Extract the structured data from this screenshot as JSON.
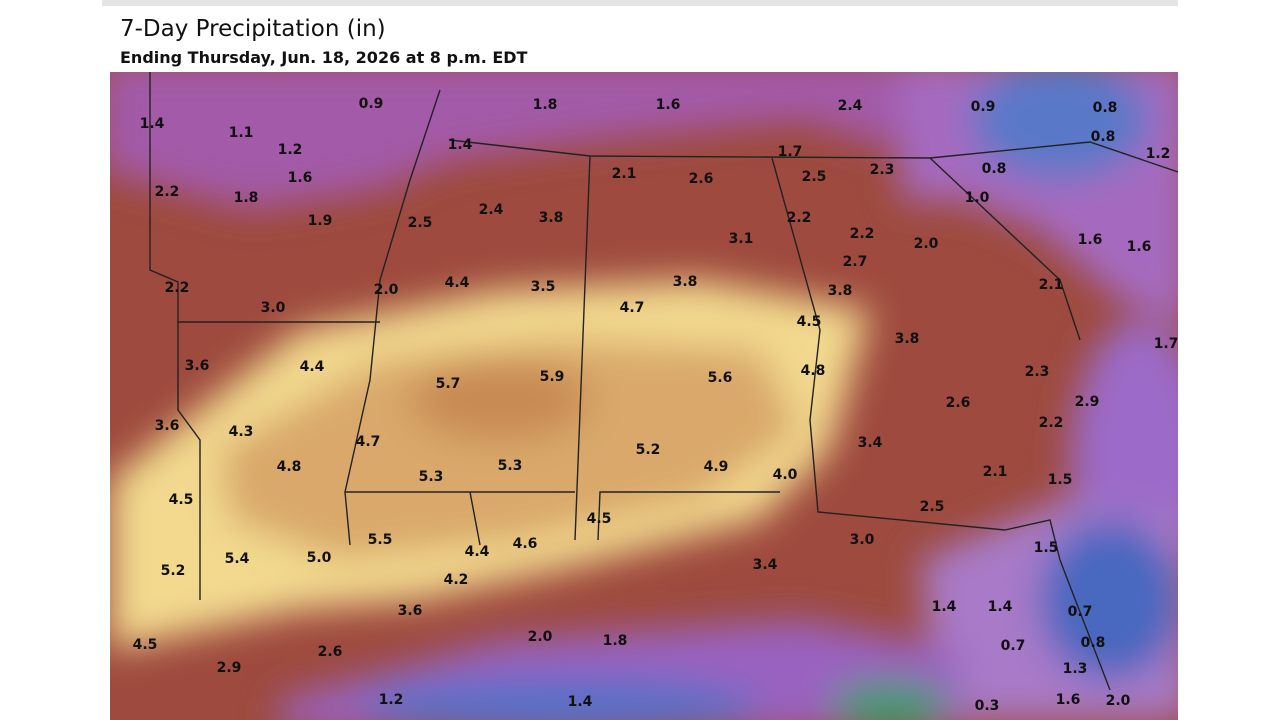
{
  "header": {
    "title": "7-Day Precipitation (in)",
    "subtitle": "Ending Thursday, Jun. 18, 2026 at 8 p.m. EDT"
  },
  "map": {
    "labels": [
      "0.9",
      "1.8",
      "1.6",
      "2.4",
      "0.9",
      "0.8",
      "1.4",
      "1.1",
      "1.2",
      "1.6",
      "1.4",
      "0.8",
      "1.2",
      "2.1",
      "2.6",
      "1.7",
      "2.5",
      "2.3",
      "0.8",
      "2.2",
      "1.8",
      "1.9",
      "2.5",
      "2.4",
      "3.8",
      "1.0",
      "3.1",
      "2.2",
      "2.2",
      "2.0",
      "1.6",
      "1.6",
      "2.7",
      "2.2",
      "3.0",
      "2.0",
      "4.4",
      "3.5",
      "3.8",
      "3.8",
      "2.1",
      "4.7",
      "4.5",
      "3.8",
      "1.7",
      "3.6",
      "4.4",
      "5.7",
      "5.9",
      "5.6",
      "4.8",
      "2.3",
      "2.6",
      "2.9",
      "3.6",
      "4.3",
      "4.7",
      "3.4",
      "2.2",
      "5.2",
      "4.8",
      "5.3",
      "5.3",
      "4.9",
      "4.0",
      "2.1",
      "1.5",
      "4.5",
      "2.5",
      "4.5",
      "5.4",
      "5.0",
      "5.5",
      "4.4",
      "4.6",
      "3.0",
      "1.5",
      "5.2",
      "4.2",
      "3.4",
      "3.6",
      "1.4",
      "1.4",
      "0.7",
      "4.5",
      "2.0",
      "1.8",
      "0.7",
      "0.8",
      "2.9",
      "2.6",
      "1.3",
      "1.2",
      "1.4",
      "0.3",
      "1.6",
      "2.0"
    ]
  }
}
